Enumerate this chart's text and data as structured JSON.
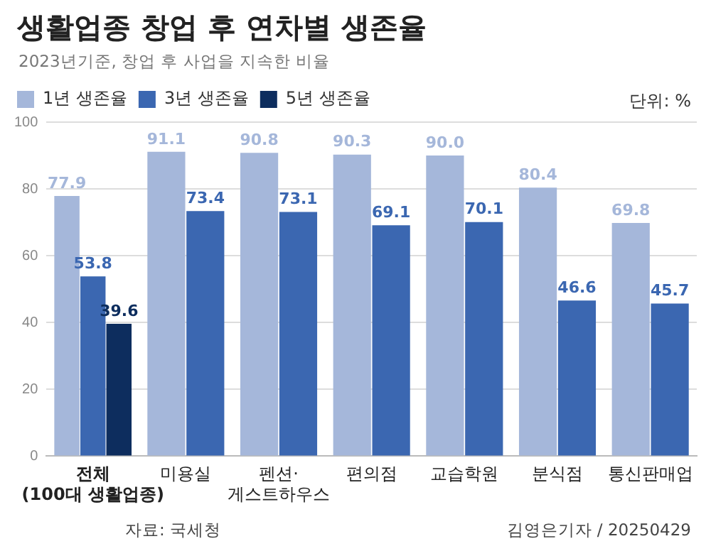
{
  "chart_data": {
    "type": "bar",
    "title": "생활업종 창업 후 연차별 생존율",
    "subtitle": "2023년기준, 창업 후 사업을 지속한 비율",
    "ylabel": "단위: %",
    "categories": [
      "전체\n(100대 생활업종)",
      "미용실",
      "펜션·\n게스트하우스",
      "편의점",
      "교습학원",
      "분식점",
      "통신판매업"
    ],
    "series": [
      {
        "name": "1년 생존율",
        "color": "#a5b7da",
        "values": [
          77.9,
          91.1,
          90.8,
          90.3,
          90.0,
          80.4,
          69.8
        ],
        "value_labels": [
          "77.9",
          "91.1",
          "90.8",
          "90.3",
          "90.0",
          "80.4",
          "69.8"
        ]
      },
      {
        "name": "3년 생존율",
        "color": "#3b67b1",
        "values": [
          53.8,
          73.4,
          73.1,
          69.1,
          70.1,
          46.6,
          45.7
        ],
        "value_labels": [
          "53.8",
          "73.4",
          "73.1",
          "69.1",
          "70.1",
          "46.6",
          "45.7"
        ]
      },
      {
        "name": "5년 생존율",
        "color": "#0d2d5e",
        "values": [
          39.6,
          null,
          null,
          null,
          null,
          null,
          null
        ],
        "value_labels": [
          "39.6",
          null,
          null,
          null,
          null,
          null,
          null
        ]
      }
    ],
    "ylim": [
      0,
      100
    ],
    "yticks": [
      0,
      20,
      40,
      60,
      80,
      100
    ],
    "grid": "y",
    "legend": "top left",
    "annotations": [
      "자료: 국세청",
      "김영은기자 / 20250429"
    ]
  }
}
